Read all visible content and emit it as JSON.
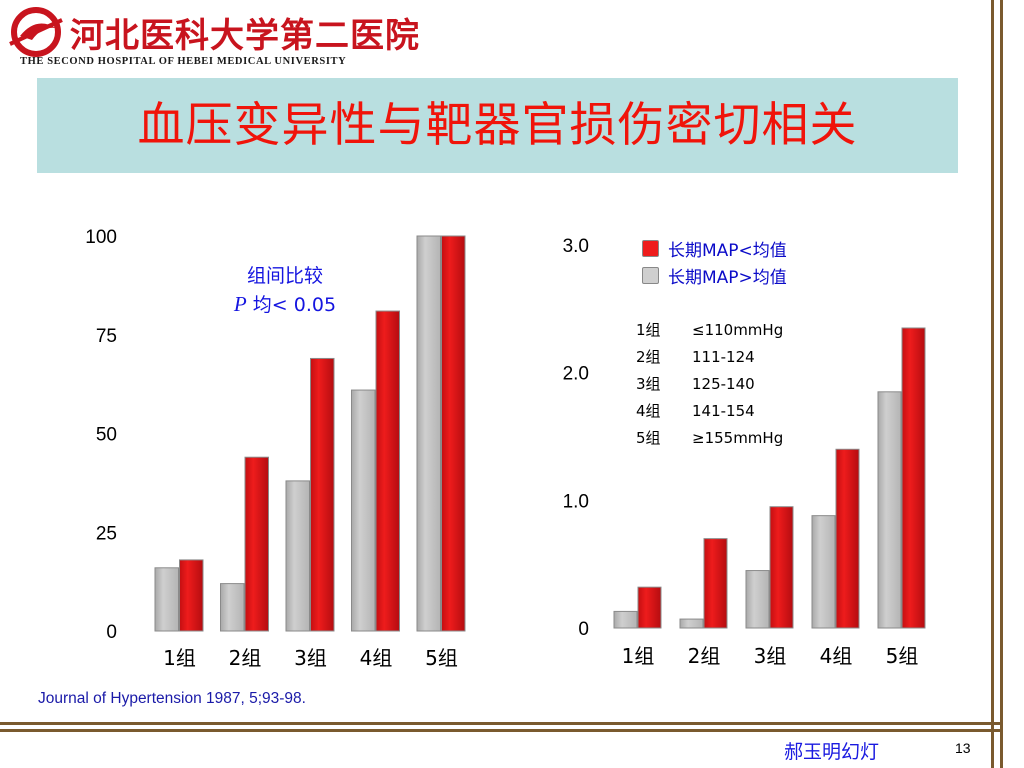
{
  "header": {
    "logo_cn": "河北医科大学第二医院",
    "logo_en": "THE SECOND HOSPITAL OF HEBEI MEDICAL UNIVERSITY"
  },
  "title": "血压变异性与靶器官损伤密切相关",
  "colors": {
    "title": "#f0140a",
    "title_bg": "#b9dfe0",
    "high_map": "#ee1c1c",
    "low_map": "#cfcfcf",
    "annotation": "#1515e0"
  },
  "chart_left": {
    "annotation_line1": "组间比较",
    "annotation_line2_italic": "P",
    "annotation_line2_rest": " 均< 0.05"
  },
  "chart_right": {
    "legend": [
      {
        "label": "长期MAP<均值",
        "color_key": "high_map"
      },
      {
        "label": "长期MAP>均值",
        "color_key": "low_map"
      }
    ],
    "groups": [
      {
        "name": "1组",
        "range": "≤110mmHg"
      },
      {
        "name": "2组",
        "range": "111-124"
      },
      {
        "name": "3组",
        "range": "125-140"
      },
      {
        "name": "4组",
        "range": "141-154"
      },
      {
        "name": "5组",
        "range": "≥155mmHg"
      }
    ]
  },
  "chart_data": [
    {
      "type": "bar",
      "categories": [
        "1组",
        "2组",
        "3组",
        "4组",
        "5组"
      ],
      "series": [
        {
          "color_key": "low_map",
          "values": [
            16,
            12,
            38,
            61,
            100
          ]
        },
        {
          "color_key": "high_map",
          "values": [
            18,
            44,
            69,
            81,
            100
          ]
        }
      ],
      "yticks": [
        "0",
        "25",
        "50",
        "75",
        "100"
      ],
      "ytick_values": [
        0,
        25,
        50,
        75,
        100
      ],
      "ylim": [
        0,
        100
      ],
      "grid": false
    },
    {
      "type": "bar",
      "categories": [
        "1组",
        "2组",
        "3组",
        "4组",
        "5组"
      ],
      "series": [
        {
          "name": "长期MAP>均值",
          "color_key": "low_map",
          "values": [
            0.13,
            0.07,
            0.45,
            0.88,
            1.85
          ]
        },
        {
          "name": "长期MAP<均值",
          "color_key": "high_map",
          "values": [
            0.32,
            0.7,
            0.95,
            1.4,
            2.35
          ]
        }
      ],
      "yticks": [
        "0",
        "1.0",
        "2.0",
        "3.0"
      ],
      "ytick_values": [
        0,
        1,
        2,
        3
      ],
      "ylim": [
        0,
        3
      ],
      "grid": false,
      "legend": "top-right"
    }
  ],
  "source": "Journal of Hypertension 1987, 5;93-98.",
  "footer": {
    "author": "郝玉明幻灯",
    "page": "13"
  }
}
